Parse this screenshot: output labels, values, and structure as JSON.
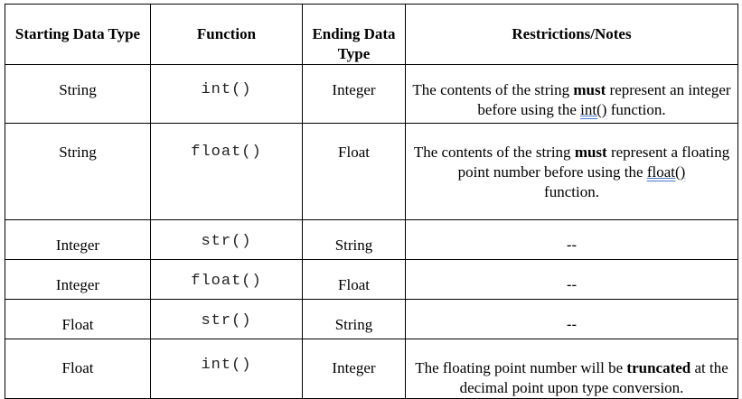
{
  "headers": {
    "starting_type": "Starting Data Type",
    "function": "Function",
    "ending_type": "Ending Data Type",
    "notes": "Restrictions/Notes"
  },
  "rows": [
    {
      "start": "String",
      "func": "int()",
      "end": "Integer",
      "notes": {
        "pre": "The contents of the string ",
        "bold": "must",
        "mid": " represent an integer before using the ",
        "fn": "int()",
        "post": " function."
      }
    },
    {
      "start": "String",
      "func": "float()",
      "end": "Float",
      "notes": {
        "pre": "The contents of the string ",
        "bold": "must",
        "mid": " represent a floating point number before using the ",
        "fn": "float()",
        "post": "function."
      }
    },
    {
      "start": "Integer",
      "func": "str()",
      "end": "String",
      "notes_text": "--"
    },
    {
      "start": "Integer",
      "func": "float()",
      "end": "Float",
      "notes_text": "--"
    },
    {
      "start": "Float",
      "func": "str()",
      "end": "String",
      "notes_text": "--"
    },
    {
      "start": "Float",
      "func": "int()",
      "end": "Integer",
      "notes": {
        "pre": "The floating point number will be ",
        "bold": "truncated",
        "post": " at the decimal point upon type conversion."
      }
    }
  ]
}
